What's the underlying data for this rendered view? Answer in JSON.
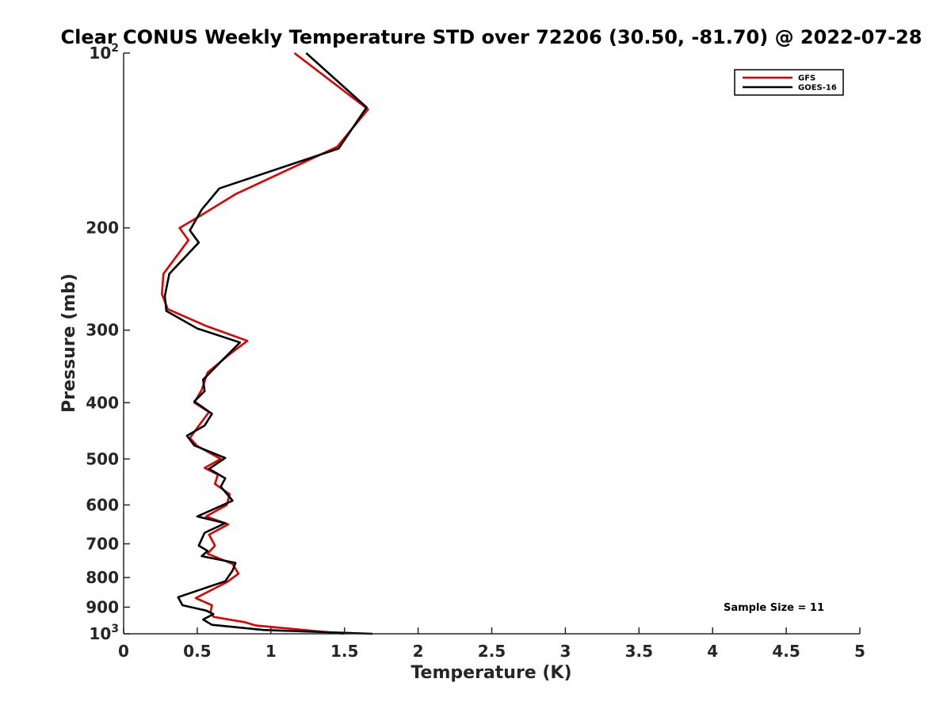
{
  "chart_data": {
    "type": "line",
    "title": "Clear CONUS Weekly Temperature STD over 72206 (30.50, -81.70) @ 2022-07-28",
    "xlabel": "Temperature (K)",
    "ylabel": "Pressure (mb)",
    "xlim": [
      0,
      5
    ],
    "ylim": [
      100,
      1000
    ],
    "y_scale": "log",
    "y_reversed": true,
    "grid": false,
    "legend_position": "top-right",
    "x_ticks": [
      {
        "value": 0,
        "label": "0"
      },
      {
        "value": 0.5,
        "label": "0.5"
      },
      {
        "value": 1,
        "label": "1"
      },
      {
        "value": 1.5,
        "label": "1.5"
      },
      {
        "value": 2,
        "label": "2"
      },
      {
        "value": 2.5,
        "label": "2.5"
      },
      {
        "value": 3,
        "label": "3"
      },
      {
        "value": 3.5,
        "label": "3.5"
      },
      {
        "value": 4,
        "label": "4"
      },
      {
        "value": 4.5,
        "label": "4.5"
      },
      {
        "value": 5,
        "label": "5"
      }
    ],
    "y_ticks": [
      {
        "value": 100,
        "base": "10",
        "exp": "2"
      },
      {
        "value": 200,
        "label": "200"
      },
      {
        "value": 300,
        "label": "300"
      },
      {
        "value": 400,
        "label": "400"
      },
      {
        "value": 500,
        "label": "500"
      },
      {
        "value": 600,
        "label": "600"
      },
      {
        "value": 700,
        "label": "700"
      },
      {
        "value": 800,
        "label": "800"
      },
      {
        "value": 900,
        "label": "900"
      },
      {
        "value": 1000,
        "base": "10",
        "exp": "3"
      }
    ],
    "series": [
      {
        "name": "GFS",
        "color": "#e00000",
        "points": [
          [
            1.16,
            100
          ],
          [
            1.66,
            125
          ],
          [
            1.45,
            145
          ],
          [
            0.76,
            175
          ],
          [
            0.53,
            190
          ],
          [
            0.38,
            200
          ],
          [
            0.44,
            210
          ],
          [
            0.27,
            240
          ],
          [
            0.26,
            260
          ],
          [
            0.3,
            276
          ],
          [
            0.56,
            295
          ],
          [
            0.84,
            313
          ],
          [
            0.72,
            330
          ],
          [
            0.57,
            355
          ],
          [
            0.53,
            380
          ],
          [
            0.48,
            400
          ],
          [
            0.58,
            415
          ],
          [
            0.52,
            435
          ],
          [
            0.45,
            460
          ],
          [
            0.5,
            475
          ],
          [
            0.66,
            500
          ],
          [
            0.55,
            518
          ],
          [
            0.64,
            532
          ],
          [
            0.62,
            552
          ],
          [
            0.72,
            575
          ],
          [
            0.7,
            600
          ],
          [
            0.56,
            628
          ],
          [
            0.71,
            648
          ],
          [
            0.58,
            675
          ],
          [
            0.62,
            705
          ],
          [
            0.57,
            728
          ],
          [
            0.74,
            758
          ],
          [
            0.78,
            788
          ],
          [
            0.7,
            815
          ],
          [
            0.49,
            868
          ],
          [
            0.6,
            893
          ],
          [
            0.59,
            918
          ],
          [
            0.61,
            935
          ],
          [
            0.82,
            955
          ],
          [
            0.9,
            968
          ],
          [
            1.5,
            1000
          ]
        ]
      },
      {
        "name": "GOES-16",
        "color": "#000000",
        "points": [
          [
            1.24,
            100
          ],
          [
            1.65,
            124
          ],
          [
            1.46,
            146
          ],
          [
            0.65,
            171
          ],
          [
            0.53,
            186
          ],
          [
            0.45,
            202
          ],
          [
            0.51,
            212
          ],
          [
            0.31,
            240
          ],
          [
            0.28,
            262
          ],
          [
            0.29,
            278
          ],
          [
            0.5,
            298
          ],
          [
            0.79,
            315
          ],
          [
            0.66,
            340
          ],
          [
            0.54,
            365
          ],
          [
            0.55,
            382
          ],
          [
            0.48,
            398
          ],
          [
            0.6,
            418
          ],
          [
            0.55,
            438
          ],
          [
            0.43,
            456
          ],
          [
            0.48,
            474
          ],
          [
            0.69,
            498
          ],
          [
            0.58,
            520
          ],
          [
            0.69,
            540
          ],
          [
            0.66,
            558
          ],
          [
            0.74,
            590
          ],
          [
            0.5,
            628
          ],
          [
            0.69,
            645
          ],
          [
            0.55,
            670
          ],
          [
            0.51,
            705
          ],
          [
            0.57,
            720
          ],
          [
            0.53,
            735
          ],
          [
            0.76,
            755
          ],
          [
            0.74,
            778
          ],
          [
            0.69,
            812
          ],
          [
            0.37,
            865
          ],
          [
            0.4,
            893
          ],
          [
            0.56,
            912
          ],
          [
            0.61,
            925
          ],
          [
            0.54,
            945
          ],
          [
            0.6,
            965
          ],
          [
            0.95,
            985
          ],
          [
            1.69,
            1000
          ]
        ]
      }
    ],
    "annotations": [
      {
        "text": "Sample Size = 11",
        "x": 4.75,
        "y": 900
      }
    ]
  }
}
